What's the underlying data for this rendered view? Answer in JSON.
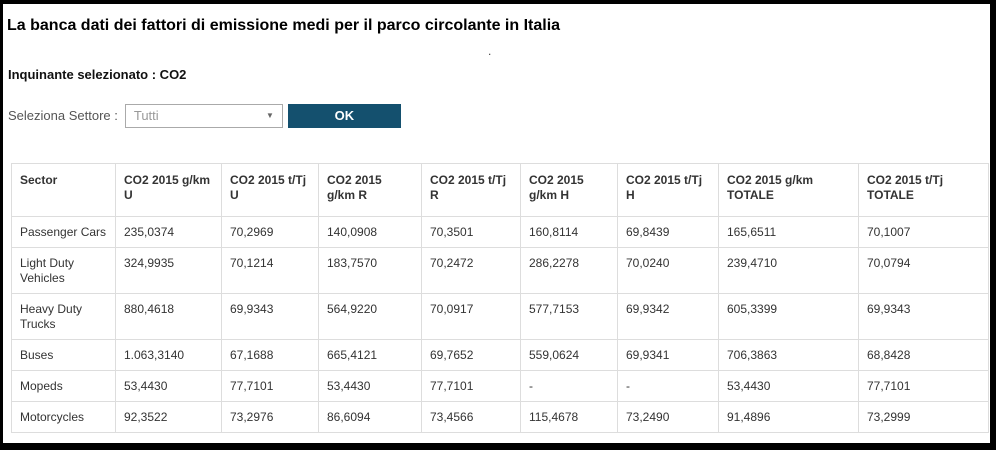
{
  "header": {
    "title": "La banca dati dei fattori di emissione medi per il parco circolante in Italia",
    "stray_dot": "."
  },
  "filters": {
    "pollutant_text": "Inquinante selezionato : CO2",
    "sector_label": "Seleziona Settore :",
    "sector_value": "Tutti",
    "dropdown_arrow_icon": "▼",
    "ok_button_label": "OK"
  },
  "colors": {
    "frame_border": "#000000",
    "ok_button_bg": "#14506E",
    "ok_button_text": "#FFFFFF",
    "table_border": "#DDDDDD",
    "body_text": "#333333",
    "muted_text": "#999999"
  },
  "table": {
    "headers": [
      "Sector",
      "CO2 2015 g/km U",
      "CO2 2015 t/Tj U",
      "CO2 2015 g/km R",
      "CO2 2015 t/Tj R",
      "CO2 2015 g/km H",
      "CO2 2015 t/Tj H",
      "CO2 2015 g/km TOTALE",
      "CO2 2015 t/Tj TOTALE"
    ],
    "rows": [
      {
        "sector": "Passenger Cars",
        "values": [
          "235,0374",
          "70,2969",
          "140,0908",
          "70,3501",
          "160,8114",
          "69,8439",
          "165,6511",
          "70,1007"
        ]
      },
      {
        "sector": "Light Duty Vehicles",
        "values": [
          "324,9935",
          "70,1214",
          "183,7570",
          "70,2472",
          "286,2278",
          "70,0240",
          "239,4710",
          "70,0794"
        ]
      },
      {
        "sector": "Heavy Duty Trucks",
        "values": [
          "880,4618",
          "69,9343",
          "564,9220",
          "70,0917",
          "577,7153",
          "69,9342",
          "605,3399",
          "69,9343"
        ]
      },
      {
        "sector": "Buses",
        "values": [
          "1.063,3140",
          "67,1688",
          "665,4121",
          "69,7652",
          "559,0624",
          "69,9341",
          "706,3863",
          "68,8428"
        ]
      },
      {
        "sector": "Mopeds",
        "values": [
          "53,4430",
          "77,7101",
          "53,4430",
          "77,7101",
          "-",
          "-",
          "53,4430",
          "77,7101"
        ]
      },
      {
        "sector": "Motorcycles",
        "values": [
          "92,3522",
          "73,2976",
          "86,6094",
          "73,4566",
          "115,4678",
          "73,2490",
          "91,4896",
          "73,2999"
        ]
      }
    ]
  }
}
